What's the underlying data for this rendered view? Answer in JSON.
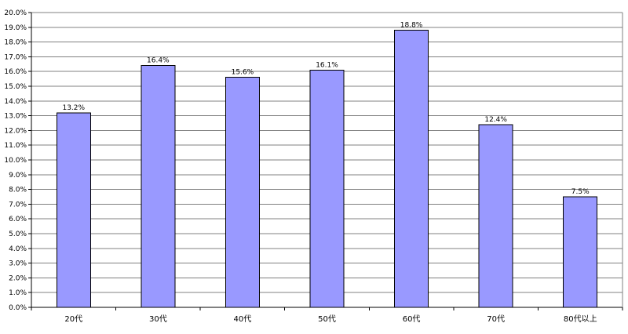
{
  "chart_data": {
    "type": "bar",
    "categories": [
      "20代",
      "30代",
      "40代",
      "50代",
      "60代",
      "70代",
      "80代以上"
    ],
    "values": [
      13.2,
      16.4,
      15.6,
      16.1,
      18.8,
      12.4,
      7.5
    ],
    "data_labels": [
      "13.2%",
      "16.4%",
      "15.6%",
      "16.1%",
      "18.8%",
      "12.4%",
      "7.5%"
    ],
    "ylim": [
      0,
      20
    ],
    "ystep": 1,
    "ytick_labels": [
      "0.0%",
      "1.0%",
      "2.0%",
      "3.0%",
      "4.0%",
      "5.0%",
      "6.0%",
      "7.0%",
      "8.0%",
      "9.0%",
      "10.0%",
      "11.0%",
      "12.0%",
      "13.0%",
      "14.0%",
      "15.0%",
      "16.0%",
      "17.0%",
      "18.0%",
      "19.0%",
      "20.0%"
    ],
    "grid": true,
    "legend": "none",
    "bar_color": "#9999FF",
    "bar_edge_color": "#000000",
    "grid_color": "#808080"
  }
}
